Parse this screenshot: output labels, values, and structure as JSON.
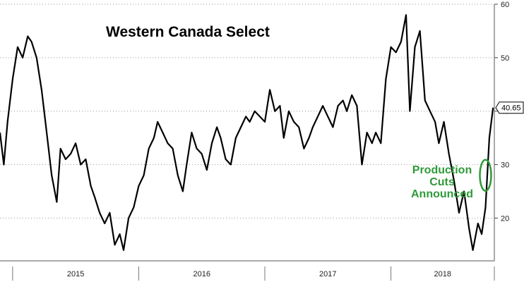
{
  "chart_data": {
    "type": "line",
    "title": "Western Canada Select",
    "xlabel": "",
    "ylabel": "",
    "ylim": [
      12,
      60
    ],
    "yticks": [
      20,
      30,
      40,
      50,
      60
    ],
    "y_axis_position": "right",
    "grid": true,
    "x_categories": [
      "2015",
      "2016",
      "2017",
      "2018"
    ],
    "x_range": [
      2014.9,
      2018.82
    ],
    "last_value_label": "40.65",
    "annotation": {
      "lines": [
        "Production",
        "Cuts",
        "Announced"
      ],
      "color": "#2f9a3a",
      "x": 2018.75,
      "y": 28
    },
    "colors": {
      "line": "#000000",
      "annotation": "#2f9a3a"
    },
    "series": [
      {
        "values": [
          [
            2014.9,
            36
          ],
          [
            2014.93,
            30
          ],
          [
            2014.96,
            38
          ],
          [
            2015.0,
            46
          ],
          [
            2015.04,
            52
          ],
          [
            2015.08,
            50
          ],
          [
            2015.12,
            54
          ],
          [
            2015.15,
            53
          ],
          [
            2015.19,
            50
          ],
          [
            2015.23,
            44
          ],
          [
            2015.27,
            36
          ],
          [
            2015.31,
            28
          ],
          [
            2015.35,
            23
          ],
          [
            2015.38,
            33
          ],
          [
            2015.42,
            31
          ],
          [
            2015.46,
            32
          ],
          [
            2015.5,
            34
          ],
          [
            2015.54,
            30
          ],
          [
            2015.58,
            31
          ],
          [
            2015.62,
            26
          ],
          [
            2015.65,
            24
          ],
          [
            2015.69,
            21
          ],
          [
            2015.73,
            19
          ],
          [
            2015.77,
            21
          ],
          [
            2015.81,
            15
          ],
          [
            2015.85,
            17
          ],
          [
            2015.88,
            14
          ],
          [
            2015.92,
            20
          ],
          [
            2015.96,
            22
          ],
          [
            2016.0,
            26
          ],
          [
            2016.04,
            28
          ],
          [
            2016.08,
            33
          ],
          [
            2016.12,
            35
          ],
          [
            2016.15,
            38
          ],
          [
            2016.19,
            36
          ],
          [
            2016.23,
            34
          ],
          [
            2016.27,
            33
          ],
          [
            2016.31,
            28
          ],
          [
            2016.35,
            25
          ],
          [
            2016.38,
            30
          ],
          [
            2016.42,
            36
          ],
          [
            2016.46,
            33
          ],
          [
            2016.5,
            32
          ],
          [
            2016.54,
            29
          ],
          [
            2016.58,
            34
          ],
          [
            2016.62,
            37
          ],
          [
            2016.65,
            35
          ],
          [
            2016.69,
            31
          ],
          [
            2016.73,
            30
          ],
          [
            2016.77,
            35
          ],
          [
            2016.81,
            37
          ],
          [
            2016.85,
            39
          ],
          [
            2016.88,
            38
          ],
          [
            2016.92,
            40
          ],
          [
            2016.96,
            39
          ],
          [
            2017.0,
            38
          ],
          [
            2017.04,
            44
          ],
          [
            2017.08,
            40
          ],
          [
            2017.12,
            41
          ],
          [
            2017.15,
            35
          ],
          [
            2017.19,
            40
          ],
          [
            2017.23,
            38
          ],
          [
            2017.27,
            37
          ],
          [
            2017.31,
            33
          ],
          [
            2017.35,
            35
          ],
          [
            2017.38,
            37
          ],
          [
            2017.42,
            39
          ],
          [
            2017.46,
            41
          ],
          [
            2017.5,
            39
          ],
          [
            2017.54,
            37
          ],
          [
            2017.58,
            41
          ],
          [
            2017.62,
            42
          ],
          [
            2017.65,
            40
          ],
          [
            2017.69,
            43
          ],
          [
            2017.73,
            41
          ],
          [
            2017.77,
            30
          ],
          [
            2017.81,
            36
          ],
          [
            2017.85,
            34
          ],
          [
            2017.88,
            36
          ],
          [
            2017.92,
            34
          ],
          [
            2017.96,
            46
          ],
          [
            2018.0,
            52
          ],
          [
            2018.04,
            51
          ],
          [
            2018.08,
            53
          ],
          [
            2018.12,
            58
          ],
          [
            2018.15,
            40
          ],
          [
            2018.19,
            52
          ],
          [
            2018.23,
            55
          ],
          [
            2018.27,
            42
          ],
          [
            2018.31,
            40
          ],
          [
            2018.35,
            38
          ],
          [
            2018.38,
            34
          ],
          [
            2018.42,
            38
          ],
          [
            2018.46,
            32
          ],
          [
            2018.5,
            27
          ],
          [
            2018.54,
            21
          ],
          [
            2018.58,
            25
          ],
          [
            2018.62,
            18
          ],
          [
            2018.65,
            14
          ],
          [
            2018.69,
            19
          ],
          [
            2018.72,
            17
          ],
          [
            2018.75,
            22
          ],
          [
            2018.78,
            35
          ],
          [
            2018.81,
            40.65
          ]
        ]
      }
    ]
  }
}
